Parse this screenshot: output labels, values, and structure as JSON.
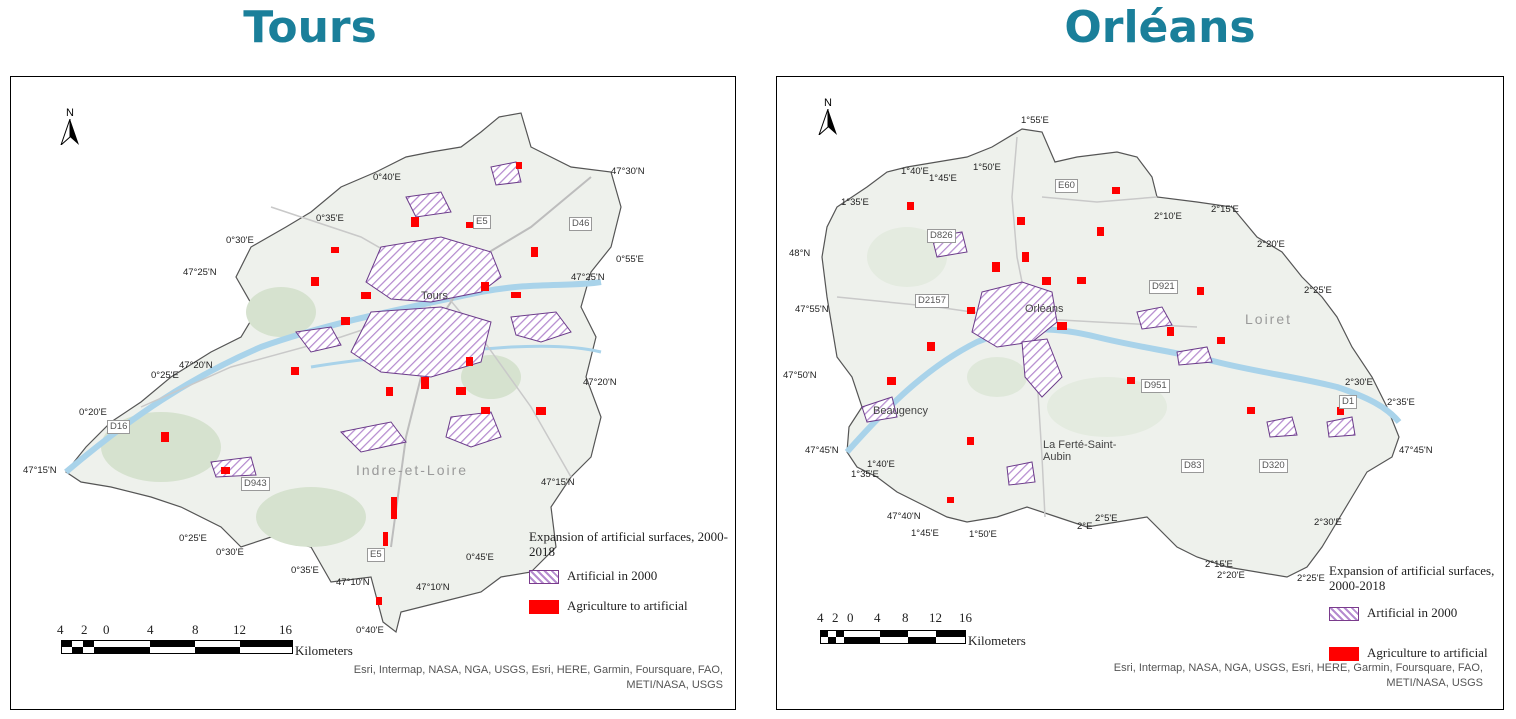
{
  "maps": [
    {
      "title": "Tours",
      "coords": [
        "0°40'E",
        "47°30'N",
        "0°35'E",
        "0°30'E",
        "0°55'E",
        "47°25'N",
        "47°25'N",
        "47°20'N",
        "0°25'E",
        "47°20'N",
        "0°20'E",
        "47°15'N",
        "47°15'N",
        "0°25'E",
        "0°30'E",
        "0°35'E",
        "47°10'N",
        "0°45'E",
        "47°10'N",
        "0°40'E"
      ],
      "roads": [
        "E5",
        "D46",
        "D16",
        "D943",
        "E5"
      ],
      "places": [
        "Tours",
        "Indre-et-Loire"
      ],
      "north_label": "N",
      "legend": {
        "title": "Expansion of artificial surfaces, 2000-2018",
        "items": [
          {
            "label": "Artificial in 2000",
            "swatch": "hatch"
          },
          {
            "label": "Agriculture to artificial",
            "swatch": "red"
          }
        ]
      },
      "scale": {
        "ticks": [
          "4",
          "2",
          "0",
          "4",
          "8",
          "12",
          "16"
        ],
        "unit": "Kilometers"
      },
      "credits": [
        "Esri, Intermap, NASA, NGA, USGS, Esri, HERE, Garmin, Foursquare, FAO,",
        "METI/NASA, USGS"
      ]
    },
    {
      "title": "Orléans",
      "coords": [
        "1°55'E",
        "1°40'E",
        "1°50'E",
        "1°45'E",
        "1°35'E",
        "2°10'E",
        "2°15'E",
        "48°N",
        "2°20'E",
        "47°55'N",
        "2°25'E",
        "47°50'N",
        "2°30'E",
        "2°35'E",
        "47°45'N",
        "1°40'E",
        "47°45'N",
        "1°35'E",
        "47°40'N",
        "2°5'E",
        "2°E",
        "1°45'E",
        "1°50'E",
        "2°30'E",
        "2°15'E",
        "2°20'E",
        "2°25'E"
      ],
      "roads": [
        "E60",
        "D826",
        "D2157",
        "D921",
        "D951",
        "D83",
        "D320",
        "D1"
      ],
      "places": [
        "Orléans",
        "Beaugency",
        "La Ferté-Saint-Aubin",
        "Loiret"
      ],
      "north_label": "N",
      "legend": {
        "title": "Expansion of artificial surfaces, 2000-2018",
        "items": [
          {
            "label": "Artificial in 2000",
            "swatch": "hatch"
          },
          {
            "label": "Agriculture to artificial",
            "swatch": "red"
          }
        ]
      },
      "scale": {
        "ticks": [
          "4",
          "2",
          "0",
          "4",
          "8",
          "12",
          "16"
        ],
        "unit": "Kilometers"
      },
      "credits": [
        "Esri, Intermap, NASA, NGA, USGS, Esri, HERE, Garmin, Foursquare, FAO,",
        "METI/NASA, USGS"
      ]
    }
  ],
  "colors": {
    "title": "#1a7f9a",
    "land": "#eef1ec",
    "forest": "#d6e2cf",
    "water": "#a9d3ea",
    "artificial_hatch": "#b58bcf",
    "agri_to_artificial": "#ff0000"
  }
}
